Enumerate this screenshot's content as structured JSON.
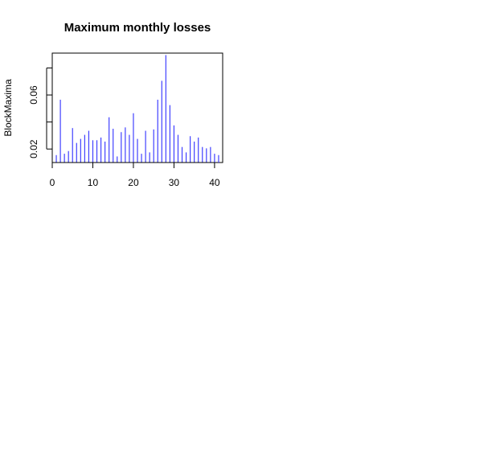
{
  "chart_data": {
    "type": "bar",
    "style": "histogram-spikes",
    "title": "Maximum monthly losses",
    "xlabel": "",
    "ylabel": "BlockMaxima",
    "bar_color": "#4040ff",
    "xlim": [
      0,
      42
    ],
    "ylim": [
      0.01,
      0.091
    ],
    "xticks": [
      0,
      10,
      20,
      30,
      40
    ],
    "yticks": [
      0.02,
      0.06
    ],
    "ytick_labels": [
      "0.02",
      "0.06"
    ],
    "x": [
      1,
      2,
      3,
      4,
      5,
      6,
      7,
      8,
      9,
      10,
      11,
      12,
      13,
      14,
      15,
      16,
      17,
      18,
      19,
      20,
      21,
      22,
      23,
      24,
      25,
      26,
      27,
      28,
      29,
      30,
      31,
      32,
      33,
      34,
      35,
      36,
      37,
      38,
      39,
      40,
      41
    ],
    "values": [
      0.0155,
      0.0565,
      0.0165,
      0.0185,
      0.0355,
      0.0245,
      0.0275,
      0.0305,
      0.0335,
      0.0265,
      0.0265,
      0.0285,
      0.0255,
      0.0435,
      0.035,
      0.0145,
      0.0325,
      0.036,
      0.0305,
      0.0465,
      0.0275,
      0.0165,
      0.0335,
      0.0175,
      0.0345,
      0.0565,
      0.0705,
      0.0895,
      0.0525,
      0.0375,
      0.0305,
      0.0215,
      0.0175,
      0.0295,
      0.0255,
      0.0285,
      0.0215,
      0.0205,
      0.0215,
      0.0165,
      0.0155
    ]
  }
}
